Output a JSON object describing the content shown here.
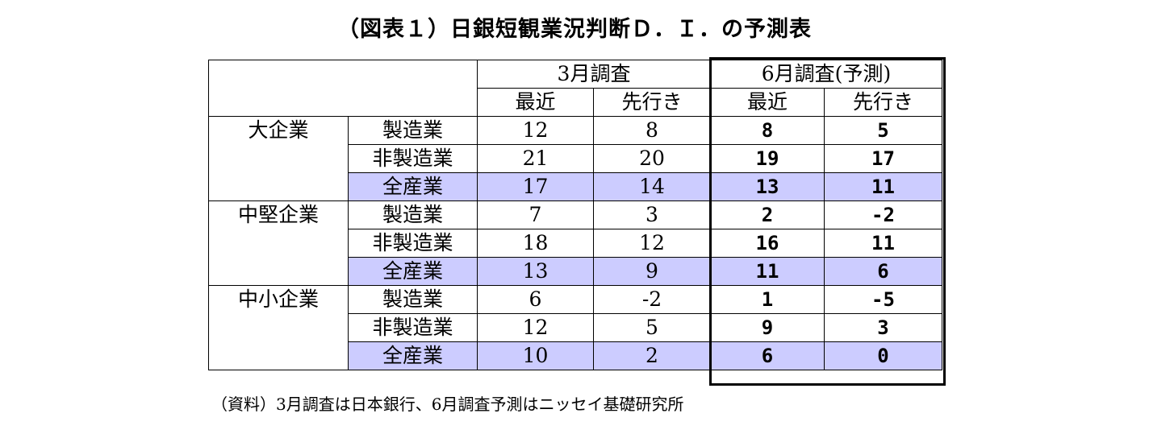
{
  "title": "（図表１）日銀短観業況判断Ｄ．Ｉ．の予測表",
  "header": {
    "march": "3月調査",
    "june": "6月調査(予測)",
    "recent": "最近",
    "outlook": "先行き"
  },
  "groups": [
    {
      "name": "大企業",
      "rows": [
        {
          "sector": "製造業",
          "mar_recent": "12",
          "mar_outlook": "8",
          "jun_recent": "8",
          "jun_outlook": "5"
        },
        {
          "sector": "非製造業",
          "mar_recent": "21",
          "mar_outlook": "20",
          "jun_recent": "19",
          "jun_outlook": "17"
        },
        {
          "sector": "全産業",
          "mar_recent": "17",
          "mar_outlook": "14",
          "jun_recent": "13",
          "jun_outlook": "11"
        }
      ]
    },
    {
      "name": "中堅企業",
      "rows": [
        {
          "sector": "製造業",
          "mar_recent": "7",
          "mar_outlook": "3",
          "jun_recent": "2",
          "jun_outlook": "-2"
        },
        {
          "sector": "非製造業",
          "mar_recent": "18",
          "mar_outlook": "12",
          "jun_recent": "16",
          "jun_outlook": "11"
        },
        {
          "sector": "全産業",
          "mar_recent": "13",
          "mar_outlook": "9",
          "jun_recent": "11",
          "jun_outlook": "6"
        }
      ]
    },
    {
      "name": "中小企業",
      "rows": [
        {
          "sector": "製造業",
          "mar_recent": "6",
          "mar_outlook": "-2",
          "jun_recent": "1",
          "jun_outlook": "-5"
        },
        {
          "sector": "非製造業",
          "mar_recent": "12",
          "mar_outlook": "5",
          "jun_recent": "9",
          "jun_outlook": "3"
        },
        {
          "sector": "全産業",
          "mar_recent": "10",
          "mar_outlook": "2",
          "jun_recent": "6",
          "jun_outlook": "0"
        }
      ]
    }
  ],
  "source": "（資料）3月調査は日本銀行、6月調査予測はニッセイ基礎研究所",
  "colors": {
    "total_row_fill": "#ccccff"
  }
}
